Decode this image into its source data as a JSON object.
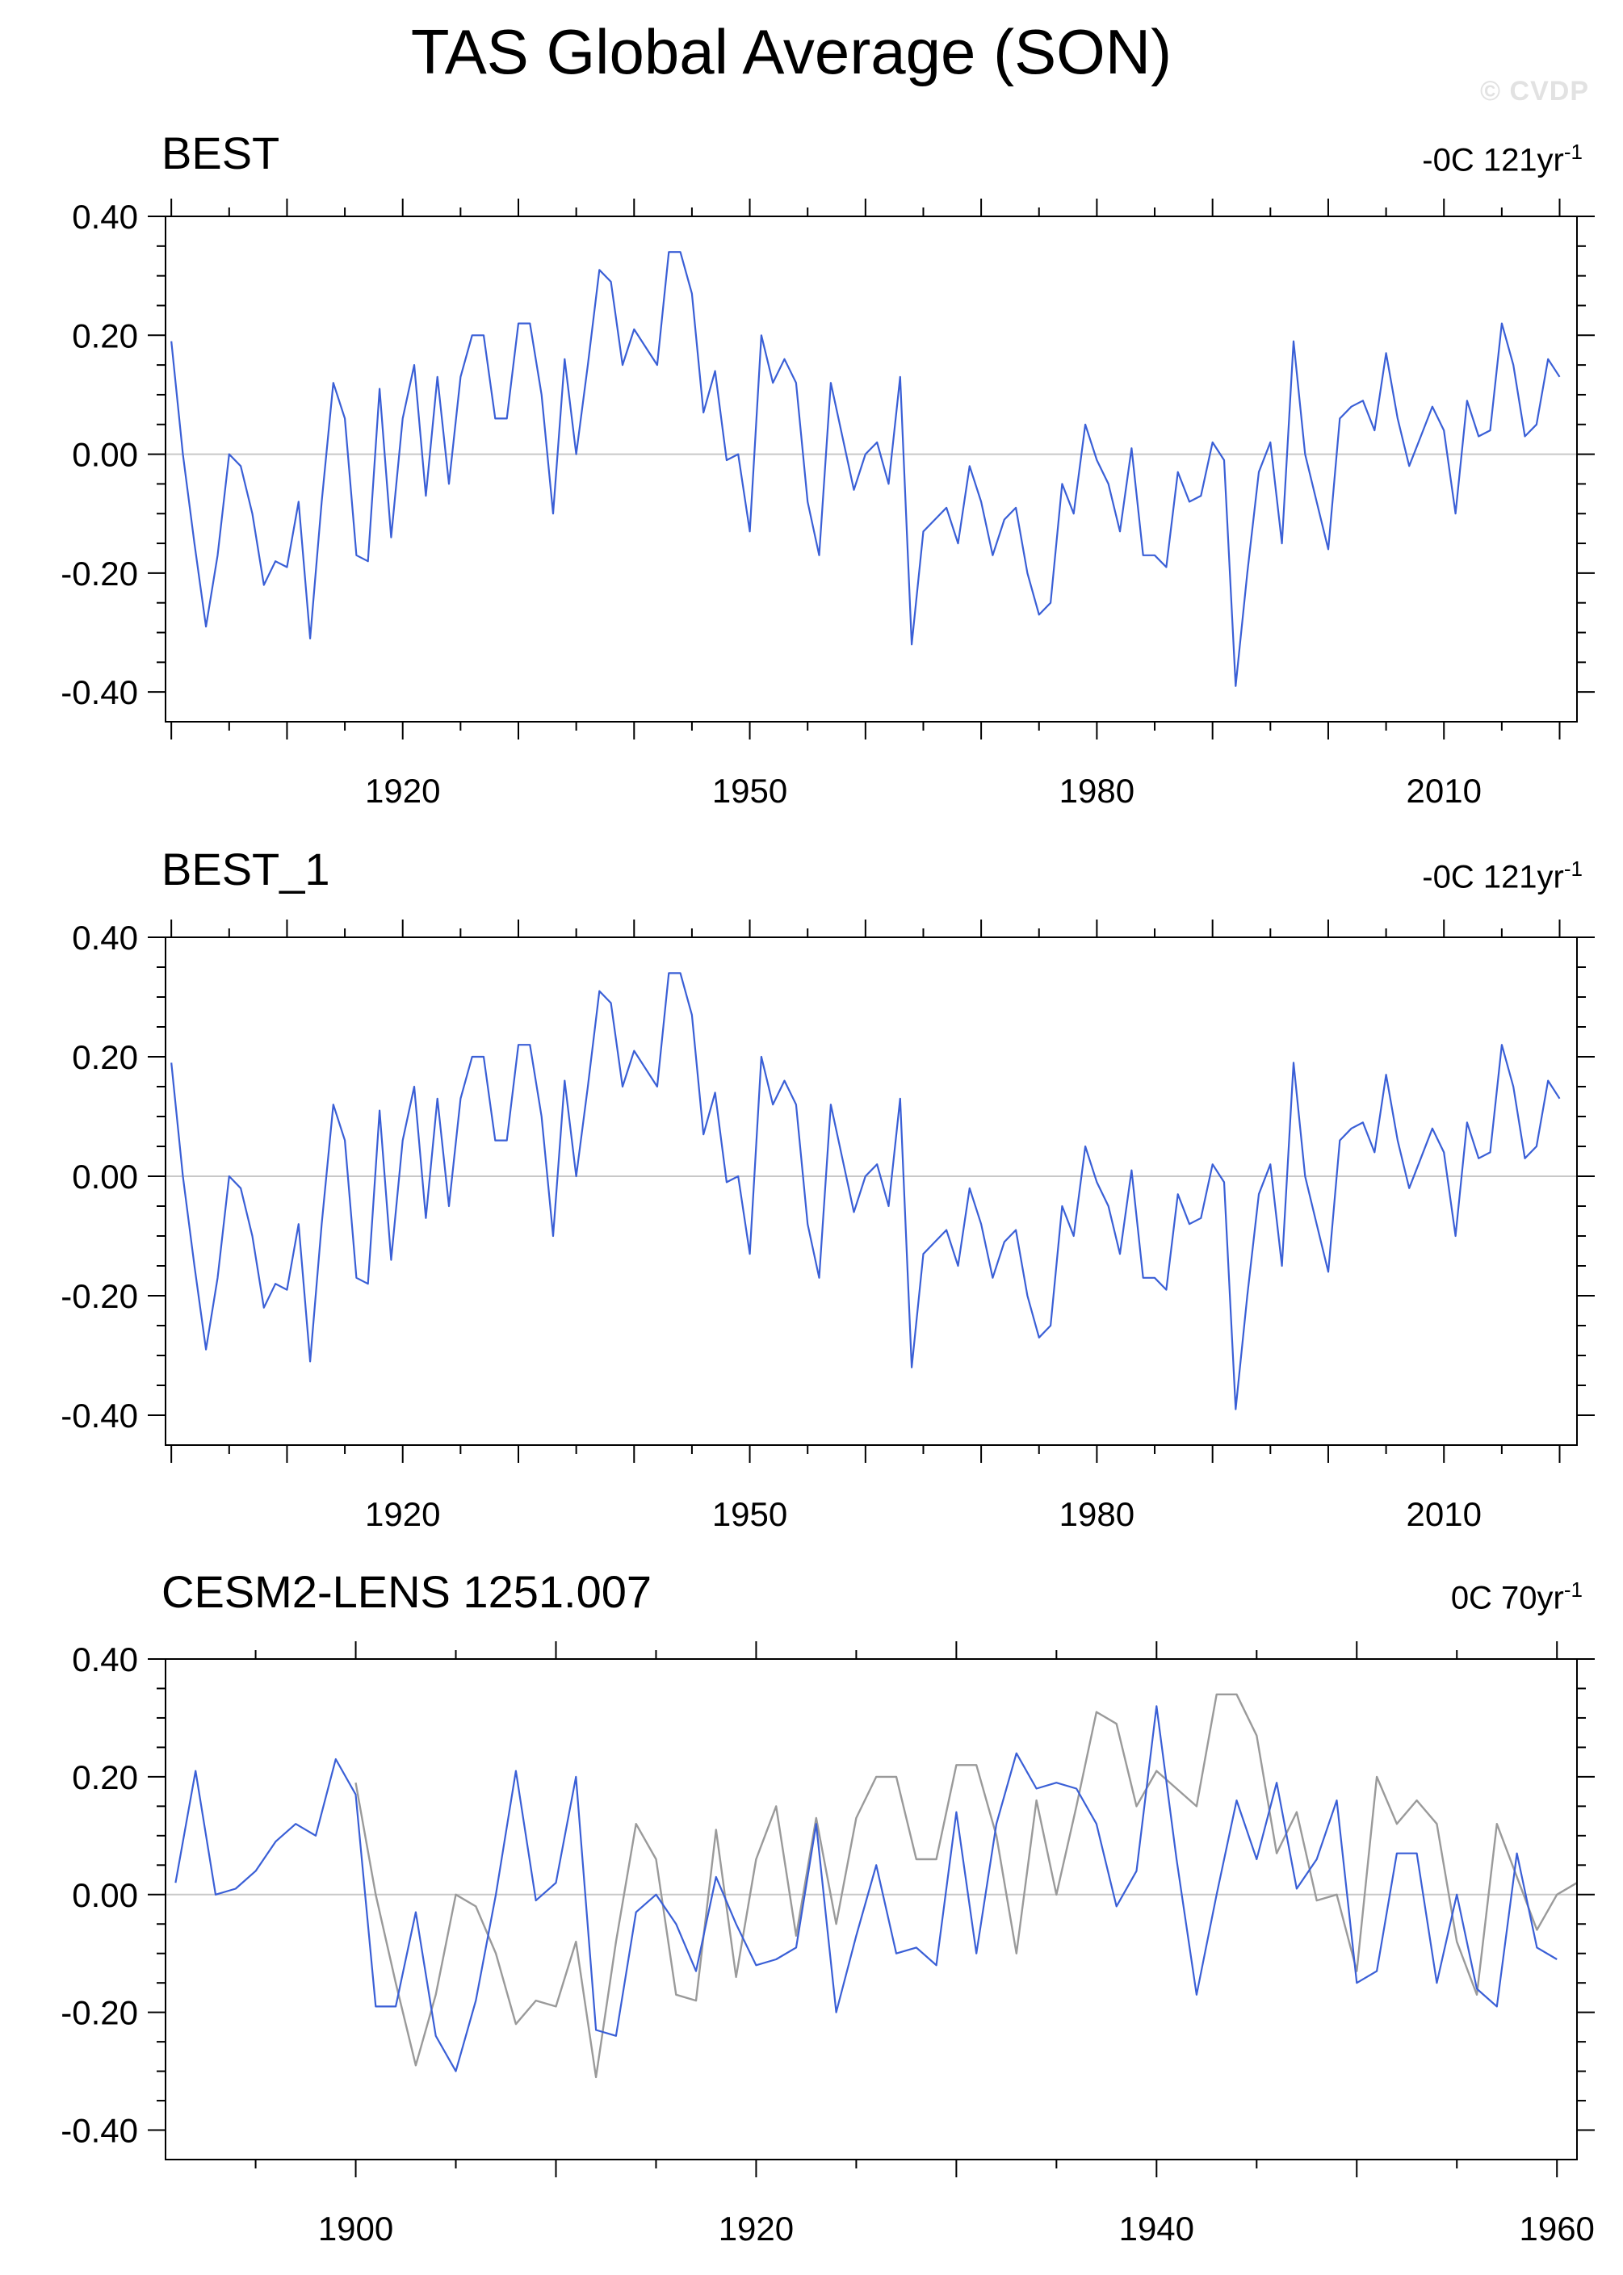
{
  "title": "TAS Global Average (SON)",
  "watermark": "© CVDP",
  "colors": {
    "series": "#3a5fd6",
    "observations": "#9a9a9a",
    "zero_line": "#c8c8c8",
    "axis": "#000000"
  },
  "panels": [
    {
      "title": "BEST",
      "trend_value": "-0C 121yr",
      "trend_unit_sup": "-1"
    },
    {
      "title": "BEST_1",
      "trend_value": "-0C 121yr",
      "trend_unit_sup": "-1"
    },
    {
      "title": "CESM2-LENS 1251.007",
      "trend_value": "0C 70yr",
      "trend_unit_sup": "-1"
    }
  ],
  "chart_data": [
    {
      "type": "line",
      "xlim": [
        1899.5,
        2021.5
      ],
      "ylim": [
        -0.45,
        0.4
      ],
      "x_ticks": [
        1920,
        1950,
        1980,
        2010
      ],
      "y_ticks": [
        "0.40",
        "0.20",
        "0.00",
        "-0.20",
        "-0.40"
      ],
      "x_start": 1900,
      "series": [
        {
          "values": [
            0.19,
            0.0,
            -0.15,
            -0.29,
            -0.17,
            0.0,
            -0.02,
            -0.1,
            -0.22,
            -0.18,
            -0.19,
            -0.08,
            -0.31,
            -0.08,
            0.12,
            0.06,
            -0.17,
            -0.18,
            0.11,
            -0.14,
            0.06,
            0.15,
            -0.07,
            0.13,
            -0.05,
            0.13,
            0.2,
            0.2,
            0.06,
            0.06,
            0.22,
            0.22,
            0.1,
            -0.1,
            0.16,
            0.0,
            0.15,
            0.31,
            0.29,
            0.15,
            0.21,
            0.18,
            0.15,
            0.34,
            0.34,
            0.27,
            0.07,
            0.14,
            -0.01,
            0.0,
            -0.13,
            0.2,
            0.12,
            0.16,
            0.12,
            -0.08,
            -0.17,
            0.12,
            0.03,
            -0.06,
            0.0,
            0.02,
            -0.05,
            0.13,
            -0.32,
            -0.13,
            -0.11,
            -0.09,
            -0.15,
            -0.02,
            -0.08,
            -0.17,
            -0.11,
            -0.09,
            -0.2,
            -0.27,
            -0.25,
            -0.05,
            -0.1,
            0.05,
            -0.01,
            -0.05,
            -0.13,
            0.01,
            -0.17,
            -0.17,
            -0.19,
            -0.03,
            -0.08,
            -0.07,
            0.02,
            -0.01,
            -0.39,
            -0.2,
            -0.03,
            0.02,
            -0.15,
            0.19,
            0.0,
            -0.08,
            -0.16,
            0.06,
            0.08,
            0.09,
            0.04,
            0.17,
            0.06,
            -0.02,
            0.03,
            0.08,
            0.04,
            -0.1,
            0.09,
            0.03,
            0.04,
            0.22,
            0.15,
            0.03,
            0.05,
            0.16,
            0.13
          ]
        }
      ]
    },
    {
      "type": "line",
      "xlim": [
        1899.5,
        2021.5
      ],
      "ylim": [
        -0.45,
        0.4
      ],
      "x_ticks": [
        1920,
        1950,
        1980,
        2010
      ],
      "y_ticks": [
        "0.40",
        "0.20",
        "0.00",
        "-0.20",
        "-0.40"
      ],
      "x_start": 1900,
      "series": [
        {
          "values": [
            0.19,
            0.0,
            -0.15,
            -0.29,
            -0.17,
            0.0,
            -0.02,
            -0.1,
            -0.22,
            -0.18,
            -0.19,
            -0.08,
            -0.31,
            -0.08,
            0.12,
            0.06,
            -0.17,
            -0.18,
            0.11,
            -0.14,
            0.06,
            0.15,
            -0.07,
            0.13,
            -0.05,
            0.13,
            0.2,
            0.2,
            0.06,
            0.06,
            0.22,
            0.22,
            0.1,
            -0.1,
            0.16,
            0.0,
            0.15,
            0.31,
            0.29,
            0.15,
            0.21,
            0.18,
            0.15,
            0.34,
            0.34,
            0.27,
            0.07,
            0.14,
            -0.01,
            0.0,
            -0.13,
            0.2,
            0.12,
            0.16,
            0.12,
            -0.08,
            -0.17,
            0.12,
            0.03,
            -0.06,
            0.0,
            0.02,
            -0.05,
            0.13,
            -0.32,
            -0.13,
            -0.11,
            -0.09,
            -0.15,
            -0.02,
            -0.08,
            -0.17,
            -0.11,
            -0.09,
            -0.2,
            -0.27,
            -0.25,
            -0.05,
            -0.1,
            0.05,
            -0.01,
            -0.05,
            -0.13,
            0.01,
            -0.17,
            -0.17,
            -0.19,
            -0.03,
            -0.08,
            -0.07,
            0.02,
            -0.01,
            -0.39,
            -0.2,
            -0.03,
            0.02,
            -0.15,
            0.19,
            0.0,
            -0.08,
            -0.16,
            0.06,
            0.08,
            0.09,
            0.04,
            0.17,
            0.06,
            -0.02,
            0.03,
            0.08,
            0.04,
            -0.1,
            0.09,
            0.03,
            0.04,
            0.22,
            0.15,
            0.03,
            0.05,
            0.16,
            0.13
          ]
        }
      ]
    },
    {
      "type": "line",
      "xlim": [
        1890.5,
        1961
      ],
      "ylim": [
        -0.45,
        0.4
      ],
      "x_ticks": [
        1900,
        1920,
        1940,
        1960
      ],
      "y_ticks": [
        "0.40",
        "0.20",
        "0.00",
        "-0.20",
        "-0.40"
      ],
      "x_start": 1891,
      "series": [
        {
          "values": [
            0.02,
            0.21,
            0.0,
            0.01,
            0.04,
            0.09,
            0.12,
            0.1,
            0.23,
            0.17,
            -0.19,
            -0.19,
            -0.03,
            -0.24,
            -0.3,
            -0.18,
            0.0,
            0.21,
            -0.01,
            0.02,
            0.2,
            -0.23,
            -0.24,
            -0.03,
            0.0,
            -0.05,
            -0.13,
            0.03,
            -0.05,
            -0.12,
            -0.11,
            -0.09,
            0.12,
            -0.2,
            -0.07,
            0.05,
            -0.1,
            -0.09,
            -0.12,
            0.14,
            -0.1,
            0.12,
            0.24,
            0.18,
            0.19,
            0.18,
            0.12,
            -0.02,
            0.04,
            0.32,
            0.06,
            -0.17,
            0.0,
            0.16,
            0.06,
            0.19,
            0.01,
            0.06,
            0.16,
            -0.15,
            -0.13,
            0.07,
            0.07,
            -0.15,
            0.0,
            -0.16,
            -0.19,
            0.07,
            -0.09,
            -0.11
          ]
        },
        {
          "x_start": 1900,
          "values": [
            0.19,
            0.0,
            -0.15,
            -0.29,
            -0.17,
            0.0,
            -0.02,
            -0.1,
            -0.22,
            -0.18,
            -0.19,
            -0.08,
            -0.31,
            -0.08,
            0.12,
            0.06,
            -0.17,
            -0.18,
            0.11,
            -0.14,
            0.06,
            0.15,
            -0.07,
            0.13,
            -0.05,
            0.13,
            0.2,
            0.2,
            0.06,
            0.06,
            0.22,
            0.22,
            0.1,
            -0.1,
            0.16,
            0.0,
            0.15,
            0.31,
            0.29,
            0.15,
            0.21,
            0.18,
            0.15,
            0.34,
            0.34,
            0.27,
            0.07,
            0.14,
            -0.01,
            0.0,
            -0.13,
            0.2,
            0.12,
            0.16,
            0.12,
            -0.08,
            -0.17,
            0.12,
            0.03,
            -0.06,
            0.0,
            0.02
          ]
        }
      ]
    }
  ]
}
